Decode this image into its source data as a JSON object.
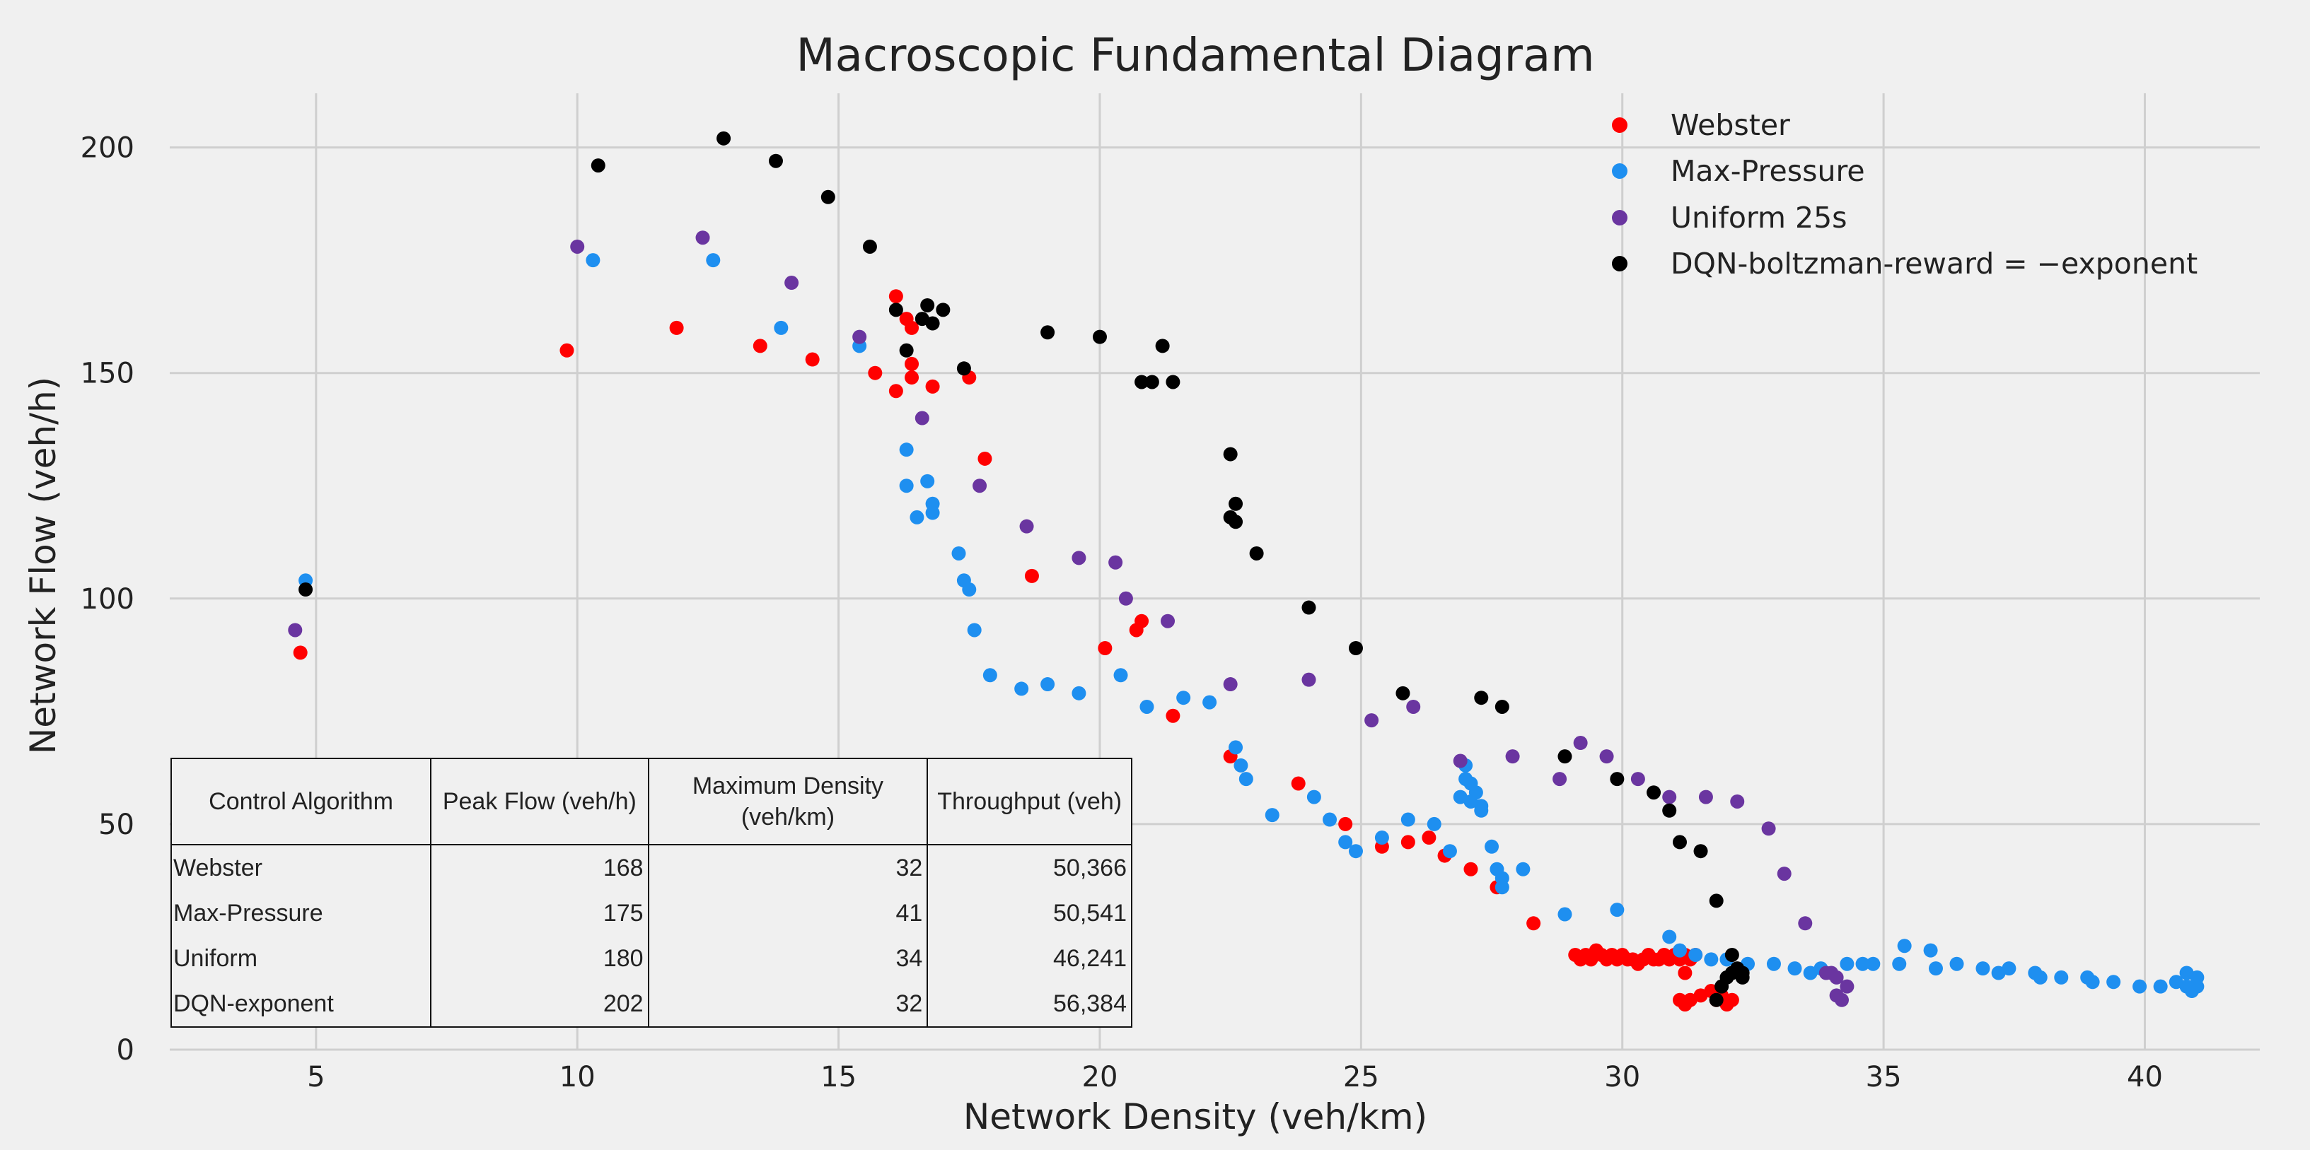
{
  "chart_data": {
    "type": "scatter",
    "title": "Macroscopic Fundamental Diagram",
    "xlabel": "Network Density (veh/km)",
    "ylabel": "Network Flow (veh/h)",
    "xlim": [
      2.2,
      42.2
    ],
    "ylim": [
      0,
      212
    ],
    "xticks": [
      5,
      10,
      15,
      20,
      25,
      30,
      35,
      40
    ],
    "yticks": [
      0,
      50,
      100,
      150,
      200
    ],
    "grid": true,
    "legend_position": "top-right",
    "series": [
      {
        "name": "Webster",
        "color": "#ff0000",
        "x": [
          4.7,
          9.8,
          11.9,
          13.5,
          14.5,
          15.7,
          16.1,
          16.1,
          16.3,
          16.4,
          16.4,
          16.4,
          16.8,
          17.5,
          17.8,
          18.7,
          20.1,
          20.7,
          20.8,
          21.4,
          22.5,
          23.8,
          24.7,
          25.4,
          25.9,
          26.3,
          26.6,
          27.1,
          27.6,
          28.3,
          29.1,
          29.2,
          29.3,
          29.4,
          29.5,
          29.6,
          29.7,
          29.8,
          29.9,
          30.0,
          30.1,
          30.2,
          30.3,
          30.4,
          30.5,
          30.6,
          30.7,
          30.8,
          30.9,
          31.0,
          31.1,
          31.2,
          31.3,
          31.4,
          31.1,
          31.2,
          31.3,
          31.5,
          31.7,
          31.8,
          32.0,
          32.1,
          31.9,
          31.2
        ],
        "y": [
          88,
          155,
          160,
          156,
          153,
          150,
          167,
          146,
          162,
          152,
          160,
          149,
          147,
          149,
          131,
          105,
          89,
          93,
          95,
          74,
          65,
          59,
          50,
          45,
          46,
          47,
          43,
          40,
          36,
          28,
          21,
          20,
          21,
          20,
          22,
          21,
          20,
          21,
          20,
          21,
          20,
          20,
          19,
          20,
          21,
          20,
          20,
          21,
          20,
          21,
          20,
          21,
          20,
          21,
          11,
          10,
          11,
          12,
          13,
          11,
          10,
          11,
          12,
          17
        ]
      },
      {
        "name": "Max-Pressure",
        "color": "#1e8ff0",
        "x": [
          4.8,
          10.3,
          12.6,
          13.9,
          15.4,
          16.3,
          16.3,
          16.5,
          16.7,
          16.8,
          16.8,
          17.3,
          17.4,
          17.5,
          17.6,
          17.9,
          18.5,
          19.0,
          19.6,
          20.4,
          20.9,
          21.6,
          22.1,
          22.6,
          22.7,
          22.8,
          23.3,
          24.1,
          24.4,
          24.7,
          24.9,
          25.4,
          25.9,
          26.4,
          26.7,
          26.9,
          27.0,
          27.0,
          27.1,
          27.1,
          27.2,
          27.3,
          27.3,
          27.5,
          27.6,
          27.7,
          27.7,
          28.1,
          28.9,
          29.9,
          30.9,
          31.1,
          31.4,
          31.7,
          32.0,
          32.4,
          32.9,
          33.3,
          33.8,
          34.3,
          34.8,
          35.3,
          35.4,
          35.9,
          36.4,
          36.9,
          37.4,
          37.9,
          38.4,
          38.9,
          39.4,
          39.9,
          40.3,
          40.6,
          40.8,
          40.9,
          41.0,
          41.0,
          40.8,
          39.0,
          38.0,
          37.2,
          36.0,
          34.6,
          33.6
        ],
        "y": [
          104,
          175,
          175,
          160,
          156,
          133,
          125,
          118,
          126,
          121,
          119,
          110,
          104,
          102,
          93,
          83,
          80,
          81,
          79,
          83,
          76,
          78,
          77,
          67,
          63,
          60,
          52,
          56,
          51,
          46,
          44,
          47,
          51,
          50,
          44,
          56,
          60,
          63,
          59,
          55,
          57,
          54,
          53,
          45,
          40,
          38,
          36,
          40,
          30,
          31,
          25,
          22,
          21,
          20,
          20,
          19,
          19,
          18,
          18,
          19,
          19,
          19,
          23,
          22,
          19,
          18,
          18,
          17,
          16,
          16,
          15,
          14,
          14,
          15,
          14,
          13,
          14,
          16,
          17,
          15,
          16,
          17,
          18,
          19,
          17
        ]
      },
      {
        "name": "Uniform 25s",
        "color": "#6a35a0",
        "x": [
          4.6,
          10.0,
          12.4,
          14.1,
          15.4,
          16.6,
          17.7,
          18.6,
          19.6,
          20.3,
          20.5,
          21.3,
          22.5,
          24.0,
          25.2,
          26.0,
          26.9,
          27.9,
          28.8,
          29.2,
          29.7,
          30.3,
          30.9,
          31.6,
          32.2,
          32.8,
          33.1,
          33.5,
          34.0,
          34.1,
          34.2,
          34.3,
          34.1,
          33.9
        ],
        "y": [
          93,
          178,
          180,
          170,
          158,
          140,
          125,
          116,
          109,
          108,
          100,
          95,
          81,
          82,
          73,
          76,
          64,
          65,
          60,
          68,
          65,
          60,
          56,
          56,
          55,
          49,
          39,
          28,
          17,
          12,
          11,
          14,
          16,
          17
        ]
      },
      {
        "name": "DQN-boltzman-reward = −exponent",
        "color": "#000000",
        "x": [
          4.8,
          10.4,
          12.8,
          13.8,
          14.8,
          15.6,
          16.1,
          16.3,
          16.6,
          16.7,
          16.8,
          17.0,
          17.4,
          19.0,
          20.0,
          20.8,
          21.0,
          21.2,
          21.4,
          22.5,
          22.5,
          22.6,
          22.6,
          23.0,
          24.0,
          24.9,
          25.8,
          27.3,
          27.7,
          28.9,
          29.9,
          30.6,
          30.9,
          31.1,
          31.5,
          31.8,
          31.8,
          31.9,
          32.0,
          32.1,
          32.2,
          32.3,
          32.3,
          32.1
        ],
        "y": [
          102,
          196,
          202,
          197,
          189,
          178,
          164,
          155,
          162,
          165,
          161,
          164,
          151,
          159,
          158,
          148,
          148,
          156,
          148,
          132,
          118,
          121,
          117,
          110,
          98,
          89,
          79,
          78,
          76,
          65,
          60,
          57,
          53,
          46,
          44,
          33,
          11,
          14,
          16,
          17,
          18,
          16,
          17,
          21
        ]
      }
    ]
  },
  "table": {
    "headers": [
      "Control Algorithm",
      "Peak Flow (veh/h)",
      "Maximum Density (veh/km)",
      "Throughput (veh)"
    ],
    "rows": [
      [
        "Webster",
        "168",
        "32",
        "50,366"
      ],
      [
        "Max-Pressure",
        "175",
        "41",
        "50,541"
      ],
      [
        "Uniform",
        "180",
        "34",
        "46,241"
      ],
      [
        "DQN-exponent",
        "202",
        "32",
        "56,384"
      ]
    ]
  }
}
